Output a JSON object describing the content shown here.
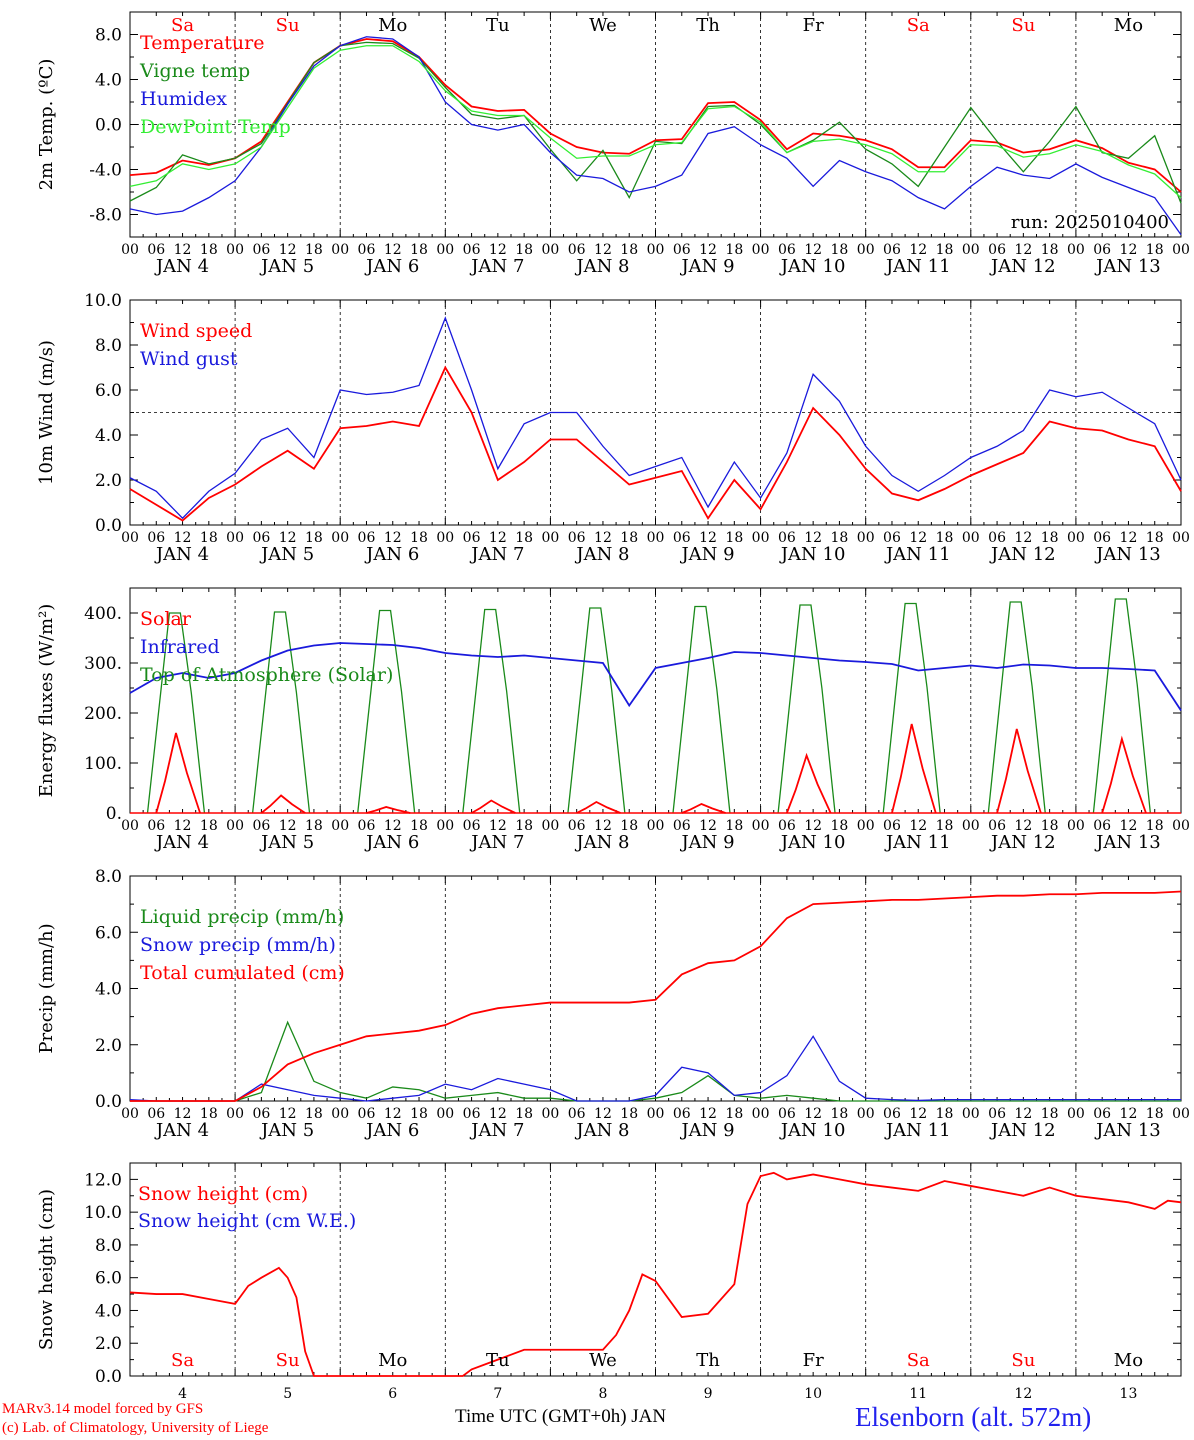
{
  "credits": {
    "model": "MARv3.14 model forced by GFS",
    "lab": "(c) Lab. of Climatology, University of Liege"
  },
  "x_axis_title": "Time UTC (GMT+0h) JAN",
  "station": "Elsenborn (alt. 572m)",
  "colors": {
    "red": "#ff0000",
    "blue": "#1a1adc",
    "green": "#1a8a1a",
    "lightgreen": "#33ee33"
  },
  "day_names": [
    "Sa",
    "Su",
    "Mo",
    "Tu",
    "We",
    "Th",
    "Fr",
    "Sa",
    "Su",
    "Mo"
  ],
  "weekend_day_indices": [
    0,
    1,
    7,
    8
  ],
  "date_labels": [
    "JAN  4",
    "JAN  5",
    "JAN  6",
    "JAN  7",
    "JAN  8",
    "JAN  9",
    "JAN 10",
    "JAN 11",
    "JAN 12",
    "JAN 13"
  ],
  "hour_ticks": [
    "00",
    "06",
    "12",
    "18"
  ],
  "last_tick": "00",
  "bottom_day_numbers": [
    "4",
    "5",
    "6",
    "7",
    "8",
    "9",
    "10",
    "11",
    "12",
    "13"
  ],
  "chart_data": [
    {
      "type": "line",
      "id": "temp",
      "ylabel": "2m Temp. (ºC)",
      "ylim": [
        -10,
        10
      ],
      "yticks": [
        "-8.0",
        "-4.0",
        "0.0",
        "4.0",
        "8.0"
      ],
      "ytick_values": [
        -8,
        -4,
        0,
        4,
        8
      ],
      "ref_line": 0,
      "annotation": "run: 2025010400",
      "x_hours": [
        0,
        6,
        12,
        18,
        24,
        30,
        36,
        42,
        48,
        54,
        60,
        66,
        72,
        78,
        84,
        90,
        96,
        102,
        108,
        114,
        120,
        126,
        132,
        138,
        144,
        150,
        156,
        162,
        168,
        174,
        180,
        186,
        192,
        198,
        204,
        210,
        216,
        222,
        228,
        234,
        240
      ],
      "series": [
        {
          "name": "Temperature",
          "color": "red",
          "values": [
            -4.5,
            -4.3,
            -3.2,
            -3.6,
            -3,
            -1.5,
            2,
            5.5,
            7,
            7.6,
            7.4,
            6,
            3.5,
            1.6,
            1.2,
            1.3,
            -0.8,
            -2,
            -2.5,
            -2.6,
            -1.4,
            -1.3,
            1.9,
            2,
            0.4,
            -2.2,
            -0.8,
            -1,
            -1.4,
            -2.2,
            -3.8,
            -3.8,
            -1.4,
            -1.6,
            -2.5,
            -2.2,
            -1.4,
            -2.1,
            -3.4,
            -4,
            -6
          ]
        },
        {
          "name": "Vigne temp",
          "color": "green",
          "values": [
            -6.8,
            -5.6,
            -2.7,
            -3.5,
            -3,
            -1.7,
            1.9,
            5.5,
            7,
            7.3,
            7.2,
            5.9,
            3.3,
            0.9,
            0.5,
            0.8,
            -2.2,
            -5,
            -2.3,
            -6.5,
            -1.5,
            -1.7,
            1.6,
            1.7,
            0,
            -2.5,
            -1.4,
            0.2,
            -2.2,
            -3.5,
            -5.5,
            -2,
            1.5,
            -1.5,
            -4.2,
            -1.5,
            1.6,
            -2.5,
            -3,
            -1,
            -7
          ]
        },
        {
          "name": "Humidex",
          "color": "blue",
          "values": [
            -7.5,
            -8,
            -7.7,
            -6.5,
            -5,
            -2,
            1.8,
            5.2,
            7,
            7.8,
            7.6,
            6,
            2,
            0,
            -0.5,
            0,
            -2.5,
            -4.5,
            -4.8,
            -6,
            -5.5,
            -4.5,
            -0.8,
            -0.2,
            -1.8,
            -3,
            -5.5,
            -3.2,
            -4.2,
            -5,
            -6.5,
            -7.5,
            -5.5,
            -3.8,
            -4.5,
            -4.8,
            -3.5,
            -4.7,
            -5.6,
            -6.5,
            -9.8
          ]
        },
        {
          "name": "DewPoint Temp",
          "color": "lightgreen",
          "values": [
            -5.5,
            -5,
            -3.5,
            -4,
            -3.5,
            -2,
            1.5,
            5,
            6.6,
            7,
            7,
            5.6,
            3,
            1.2,
            0.8,
            0.8,
            -1.2,
            -3,
            -2.8,
            -2.8,
            -1.8,
            -1.6,
            1.4,
            1.6,
            0.2,
            -2.5,
            -1.5,
            -1.3,
            -1.8,
            -2.6,
            -4.2,
            -4.2,
            -1.8,
            -1.9,
            -2.9,
            -2.6,
            -1.8,
            -2.4,
            -3.6,
            -4.4,
            -6.5
          ]
        }
      ]
    },
    {
      "type": "line",
      "id": "wind",
      "ylabel": "10m Wind (m/s)",
      "ylim": [
        0,
        10
      ],
      "yticks": [
        "0.0",
        "2.0",
        "4.0",
        "6.0",
        "8.0",
        "10.0"
      ],
      "ytick_values": [
        0,
        2,
        4,
        6,
        8,
        10
      ],
      "ref_line": 5,
      "x_hours": [
        0,
        6,
        12,
        18,
        24,
        30,
        36,
        42,
        48,
        54,
        60,
        66,
        72,
        78,
        84,
        90,
        96,
        102,
        108,
        114,
        120,
        126,
        132,
        138,
        144,
        150,
        156,
        162,
        168,
        174,
        180,
        186,
        192,
        198,
        204,
        210,
        216,
        222,
        228,
        234,
        240
      ],
      "series": [
        {
          "name": "Wind speed",
          "color": "red",
          "values": [
            1.6,
            0.9,
            0.2,
            1.2,
            1.8,
            2.6,
            3.3,
            2.5,
            4.3,
            4.4,
            4.6,
            4.4,
            7,
            5,
            2,
            2.8,
            3.8,
            3.8,
            2.8,
            1.8,
            2.1,
            2.4,
            0.3,
            2,
            0.7,
            2.8,
            5.2,
            4,
            2.5,
            1.4,
            1.1,
            1.6,
            2.2,
            2.7,
            3.2,
            4.6,
            4.3,
            4.2,
            3.8,
            3.5,
            1.5
          ]
        },
        {
          "name": "Wind gust",
          "color": "blue",
          "values": [
            2.1,
            1.5,
            0.3,
            1.5,
            2.3,
            3.8,
            4.3,
            3,
            6,
            5.8,
            5.9,
            6.2,
            9.2,
            6,
            2.5,
            4.5,
            5,
            5,
            3.5,
            2.2,
            2.6,
            3,
            0.8,
            2.8,
            1.2,
            3.2,
            6.7,
            5.5,
            3.5,
            2.2,
            1.5,
            2.2,
            3,
            3.5,
            4.2,
            6,
            5.7,
            5.9,
            5.2,
            4.5,
            2
          ]
        }
      ]
    },
    {
      "type": "line",
      "id": "energy",
      "ylabel": "Energy fluxes (W/m²)",
      "ylim": [
        0,
        450
      ],
      "yticks": [
        "0.",
        "100.",
        "200.",
        "300.",
        "400."
      ],
      "ytick_values": [
        0,
        100,
        200,
        300,
        400
      ],
      "infrared": {
        "x_hours": [
          0,
          6,
          12,
          18,
          24,
          30,
          36,
          42,
          48,
          54,
          60,
          66,
          72,
          78,
          84,
          90,
          96,
          102,
          108,
          114,
          120,
          126,
          132,
          138,
          144,
          150,
          156,
          162,
          168,
          174,
          180,
          186,
          192,
          198,
          204,
          210,
          216,
          222,
          228,
          234,
          240
        ],
        "values": [
          240,
          270,
          280,
          270,
          280,
          305,
          325,
          335,
          340,
          338,
          336,
          330,
          320,
          315,
          312,
          315,
          310,
          305,
          300,
          215,
          290,
          300,
          310,
          322,
          320,
          315,
          310,
          305,
          302,
          298,
          285,
          290,
          295,
          290,
          297,
          295,
          290,
          290,
          288,
          285,
          205
        ]
      },
      "series": [
        {
          "name": "Solar",
          "color": "red",
          "peaks": [
            160,
            35,
            12,
            25,
            22,
            18,
            115,
            178,
            168,
            148
          ]
        },
        {
          "name": "Infrared",
          "color": "blue"
        },
        {
          "name": "Top of Atmosphere (Solar)",
          "color": "green",
          "peaks": [
            400,
            402,
            405,
            407,
            410,
            413,
            416,
            419,
            422,
            428
          ]
        }
      ]
    },
    {
      "type": "line",
      "id": "precip",
      "ylabel": "Precip (mm/h)",
      "ylim": [
        0,
        8
      ],
      "yticks": [
        "0.0",
        "2.0",
        "4.0",
        "6.0",
        "8.0"
      ],
      "ytick_values": [
        0,
        2,
        4,
        6,
        8
      ],
      "x_hours": [
        0,
        6,
        12,
        18,
        24,
        30,
        36,
        42,
        48,
        54,
        60,
        66,
        72,
        78,
        84,
        90,
        96,
        102,
        108,
        114,
        120,
        126,
        132,
        138,
        144,
        150,
        156,
        162,
        168,
        174,
        180,
        186,
        192,
        198,
        204,
        210,
        216,
        222,
        228,
        234,
        240
      ],
      "series": [
        {
          "name": "Liquid precip (mm/h)",
          "color": "green",
          "values": [
            0,
            0,
            0,
            0,
            0,
            0.3,
            2.8,
            0.7,
            0.3,
            0.1,
            0.5,
            0.4,
            0.1,
            0.2,
            0.3,
            0.1,
            0.1,
            0,
            0,
            0,
            0.1,
            0.3,
            0.9,
            0.2,
            0.1,
            0.2,
            0.1,
            0,
            0,
            0,
            0,
            0,
            0,
            0,
            0,
            0,
            0,
            0,
            0,
            0,
            0
          ]
        },
        {
          "name": "Snow precip (mm/h)",
          "color": "blue",
          "values": [
            0.05,
            0,
            0,
            0,
            0,
            0.6,
            0.4,
            0.2,
            0.1,
            0,
            0.1,
            0.2,
            0.6,
            0.4,
            0.8,
            0.6,
            0.4,
            0,
            0,
            0,
            0.2,
            1.2,
            1.0,
            0.2,
            0.3,
            0.9,
            2.3,
            0.7,
            0.1,
            0.05,
            0.02,
            0.05,
            0.05,
            0.05,
            0.05,
            0.05,
            0.05,
            0.05,
            0.05,
            0.05,
            0.05
          ]
        },
        {
          "name": "Total cumulated (cm)",
          "color": "red",
          "values": [
            0,
            0,
            0,
            0,
            0,
            0.5,
            1.3,
            1.7,
            2,
            2.3,
            2.4,
            2.5,
            2.7,
            3.1,
            3.3,
            3.4,
            3.5,
            3.5,
            3.5,
            3.5,
            3.6,
            4.5,
            4.9,
            5,
            5.5,
            6.5,
            7,
            7.05,
            7.1,
            7.15,
            7.15,
            7.2,
            7.25,
            7.3,
            7.3,
            7.35,
            7.35,
            7.4,
            7.4,
            7.4,
            7.45
          ]
        }
      ]
    },
    {
      "type": "line",
      "id": "snow",
      "ylabel": "Snow height (cm)",
      "ylim": [
        0,
        13
      ],
      "yticks": [
        "0.0",
        "2.0",
        "4.0",
        "6.0",
        "8.0",
        "10.0",
        "12.0"
      ],
      "ytick_values": [
        0,
        2,
        4,
        6,
        8,
        10,
        12
      ],
      "x_hours": [
        0,
        6,
        12,
        18,
        24,
        27,
        30,
        34,
        36,
        38,
        40,
        42,
        48,
        54,
        60,
        66,
        72,
        76,
        78,
        82,
        84,
        90,
        96,
        102,
        108,
        111,
        114,
        117,
        120,
        126,
        132,
        138,
        141,
        144,
        147,
        150,
        156,
        162,
        168,
        174,
        180,
        186,
        192,
        198,
        204,
        210,
        216,
        222,
        228,
        234,
        237,
        240
      ],
      "series": [
        {
          "name": "Snow height (cm)",
          "color": "red",
          "values": [
            5.1,
            5,
            5,
            4.7,
            4.4,
            5.5,
            6,
            6.6,
            6,
            4.8,
            1.5,
            0,
            0,
            0,
            0,
            0,
            0,
            0,
            0.4,
            0.8,
            1,
            1.6,
            1.6,
            1.6,
            1.6,
            2.5,
            4,
            6.2,
            5.8,
            3.6,
            3.8,
            5.6,
            10.5,
            12.2,
            12.4,
            12,
            12.3,
            12,
            11.7,
            11.5,
            11.3,
            11.9,
            11.6,
            11.3,
            11,
            11.5,
            11,
            10.8,
            10.6,
            10.2,
            10.7,
            10.6
          ]
        },
        {
          "name": "Snow height (cm W.E.)",
          "color": "blue",
          "values": []
        }
      ]
    }
  ]
}
